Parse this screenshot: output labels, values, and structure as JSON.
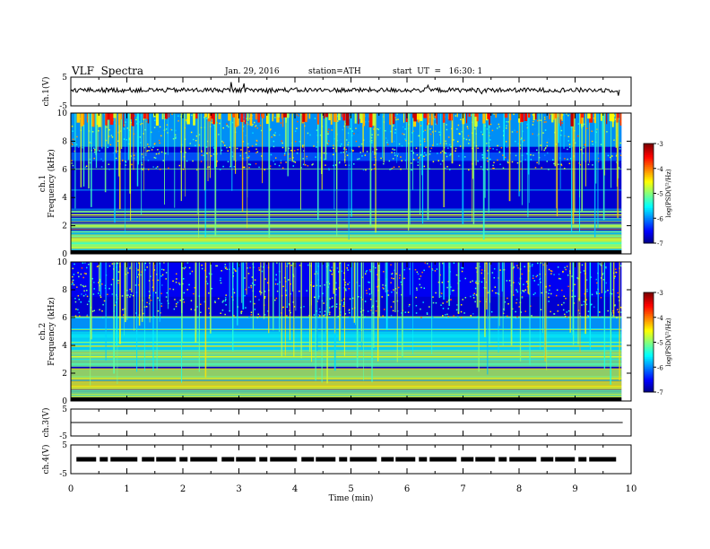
{
  "header": {
    "title": "VLF  Spectra",
    "date": "Jan. 29, 2016",
    "station": "station=ATH",
    "start": "start  UT  =   16:30: 1"
  },
  "chart_data": [
    {
      "type": "line",
      "name": "ch1-waveform",
      "ylabel": "ch.1(V)",
      "ylim": [
        -5,
        5
      ],
      "yticks": [
        "5",
        "-5"
      ],
      "xlim": [
        0,
        10
      ],
      "approx_level": 0.5,
      "trace_end": 9.8
    },
    {
      "type": "heatmap",
      "name": "ch1-spectrogram",
      "ylabel": "ch.1\nFrequency (kHz)",
      "ylim": [
        0,
        10
      ],
      "yticks": [
        "0",
        "2",
        "4",
        "6",
        "8",
        "10"
      ],
      "xlim": [
        0,
        10
      ],
      "colorbar": {
        "label": "log(PSD(V²/Hz)",
        "range": [
          -7,
          -3
        ],
        "ticks": [
          "-3",
          "-4",
          "-5",
          "-6",
          "-7"
        ]
      }
    },
    {
      "type": "heatmap",
      "name": "ch2-spectrogram",
      "ylabel": "ch.2\nFrequency (kHz)",
      "ylim": [
        0,
        10
      ],
      "yticks": [
        "0",
        "2",
        "4",
        "6",
        "8",
        "10"
      ],
      "xlim": [
        0,
        10
      ],
      "colorbar": {
        "label": "log(PSD(V²/Hz)",
        "range": [
          -7,
          -3
        ],
        "ticks": [
          "-3",
          "-4",
          "-5",
          "-6",
          "-7"
        ]
      }
    },
    {
      "type": "line",
      "name": "ch3-waveform",
      "ylabel": "ch.3(V)",
      "ylim": [
        -5,
        5
      ],
      "yticks": [
        "5",
        "-5"
      ],
      "xlim": [
        0,
        10
      ],
      "approx_level": 0.0
    },
    {
      "type": "line",
      "name": "ch4-waveform",
      "ylabel": "ch.4(V)",
      "ylim": [
        -5,
        5
      ],
      "yticks": [
        "5",
        "-5"
      ],
      "xlim": [
        0,
        10
      ],
      "approx_level": 0.0
    }
  ],
  "xaxis": {
    "label": "Time  (min)",
    "ticks": [
      "0",
      "1",
      "2",
      "3",
      "4",
      "5",
      "6",
      "7",
      "8",
      "9",
      "10"
    ]
  }
}
